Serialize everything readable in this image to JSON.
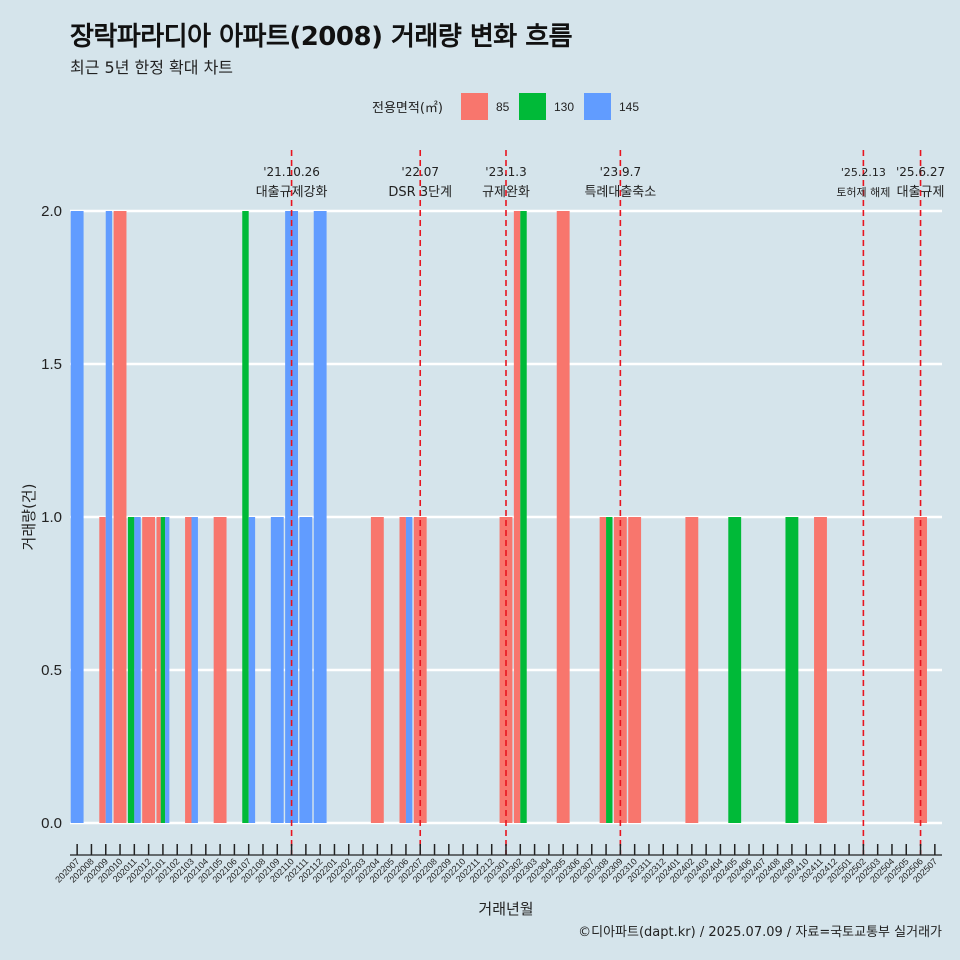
{
  "header": {
    "title": "장락파라디아 아파트(2008) 거래량 변화 흐름",
    "subtitle": "최근 5년 한정 확대 차트"
  },
  "caption": "©디아파트(dapt.kr) / 2025.07.09 / 자료=국토교통부 실거래가",
  "colors": {
    "85": "#f8766d",
    "130": "#00ba38",
    "145": "#619cff"
  },
  "chart_data": {
    "type": "bar",
    "xlabel": "거래년월",
    "ylabel": "거래량(건)",
    "ylim": [
      0,
      2
    ],
    "yticks": [
      "0.0",
      "0.5",
      "1.0",
      "1.5",
      "2.0"
    ],
    "legend": {
      "title": "전용면적(㎡)",
      "position": "top",
      "entries": [
        "85",
        "130",
        "145"
      ]
    },
    "grid": "horizontal",
    "months": [
      "202007",
      "202008",
      "202009",
      "202010",
      "202011",
      "202012",
      "202101",
      "202102",
      "202103",
      "202104",
      "202105",
      "202106",
      "202107",
      "202108",
      "202109",
      "202110",
      "202111",
      "202112",
      "202201",
      "202202",
      "202203",
      "202204",
      "202205",
      "202206",
      "202207",
      "202208",
      "202209",
      "202210",
      "202211",
      "202212",
      "202301",
      "202302",
      "202303",
      "202304",
      "202305",
      "202306",
      "202307",
      "202308",
      "202309",
      "202310",
      "202311",
      "202312",
      "202401",
      "202402",
      "202403",
      "202404",
      "202405",
      "202406",
      "202407",
      "202408",
      "202409",
      "202410",
      "202411",
      "202412",
      "202501",
      "202502",
      "202503",
      "202504",
      "202505",
      "202506",
      "202507"
    ],
    "series": [
      {
        "name": "85",
        "points": [
          {
            "x": "202009",
            "y": 1
          },
          {
            "x": "202010",
            "y": 2
          },
          {
            "x": "202012",
            "y": 1
          },
          {
            "x": "202101",
            "y": 1
          },
          {
            "x": "202103",
            "y": 1
          },
          {
            "x": "202105",
            "y": 1
          },
          {
            "x": "202204",
            "y": 1
          },
          {
            "x": "202206",
            "y": 1
          },
          {
            "x": "202207",
            "y": 1
          },
          {
            "x": "202301",
            "y": 1
          },
          {
            "x": "202302",
            "y": 2
          },
          {
            "x": "202305",
            "y": 2
          },
          {
            "x": "202308",
            "y": 1
          },
          {
            "x": "202309",
            "y": 1
          },
          {
            "x": "202310",
            "y": 1
          },
          {
            "x": "202402",
            "y": 1
          },
          {
            "x": "202411",
            "y": 1
          },
          {
            "x": "202506",
            "y": 1
          }
        ]
      },
      {
        "name": "130",
        "points": [
          {
            "x": "202011",
            "y": 1
          },
          {
            "x": "202101",
            "y": 1
          },
          {
            "x": "202107",
            "y": 2
          },
          {
            "x": "202302",
            "y": 2
          },
          {
            "x": "202308",
            "y": 1
          },
          {
            "x": "202405",
            "y": 1
          },
          {
            "x": "202409",
            "y": 1
          }
        ]
      },
      {
        "name": "145",
        "points": [
          {
            "x": "202007",
            "y": 2
          },
          {
            "x": "202009",
            "y": 2
          },
          {
            "x": "202011",
            "y": 1
          },
          {
            "x": "202101",
            "y": 1
          },
          {
            "x": "202103",
            "y": 1
          },
          {
            "x": "202107",
            "y": 1
          },
          {
            "x": "202109",
            "y": 1
          },
          {
            "x": "202110",
            "y": 2
          },
          {
            "x": "202111",
            "y": 1
          },
          {
            "x": "202112",
            "y": 2
          },
          {
            "x": "202206",
            "y": 1
          }
        ]
      }
    ],
    "annotations": [
      {
        "x": "202110",
        "date": "'21.10.26",
        "label": "대출규제강화"
      },
      {
        "x": "202207",
        "date": "'22.07",
        "label": "DSR 3단계"
      },
      {
        "x": "202301",
        "date": "'23.1.3",
        "label": "규제완화"
      },
      {
        "x": "202309",
        "date": "'23.9.7",
        "label": "특례대출축소"
      },
      {
        "x": "202502",
        "date": "'25.2.13",
        "label": "토허제 해제"
      },
      {
        "x": "202506",
        "date": "'25.6.27",
        "label": "대출규제"
      }
    ]
  }
}
